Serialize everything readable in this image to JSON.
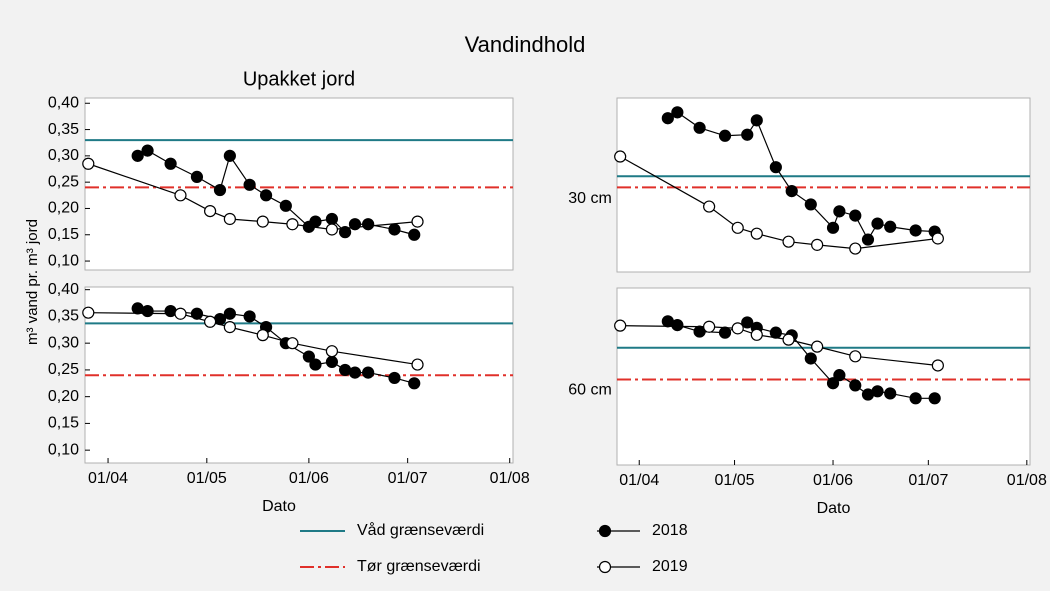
{
  "title": "Vandindhold",
  "y_label": "m³ vand pr. m³ jord",
  "chart_data": [
    {
      "type": "line",
      "title": "Upakket jord",
      "xlim": [
        "25/03",
        "02/08"
      ],
      "ylim": [
        0.083,
        0.41
      ],
      "yticks": [
        {
          "value": 0.1,
          "label": "0,10"
        },
        {
          "value": 0.15,
          "label": "0,15"
        },
        {
          "value": 0.2,
          "label": "0,20"
        },
        {
          "value": 0.25,
          "label": "0,25"
        },
        {
          "value": 0.3,
          "label": "0,30"
        },
        {
          "value": 0.35,
          "label": "0,35"
        },
        {
          "value": 0.4,
          "label": "0,40"
        }
      ],
      "reference_lines": [
        {
          "name": "Våd grænseværdi",
          "color": "#1f7a86",
          "value": 0.33
        },
        {
          "name": "Tør grænseværdi",
          "color": "#e0302a",
          "value": 0.24
        }
      ],
      "series": [
        {
          "name": "2018",
          "color": "#000000",
          "x": [
            "10/04",
            "13/04",
            "20/04",
            "28/04",
            "05/05",
            "08/05",
            "14/05",
            "19/05",
            "25/05",
            "01/06",
            "03/06",
            "08/06",
            "12/06",
            "15/06",
            "19/06",
            "27/06",
            "03/07"
          ],
          "values": [
            0.3,
            0.31,
            0.285,
            0.26,
            0.235,
            0.3,
            0.245,
            0.225,
            0.205,
            0.165,
            0.175,
            0.18,
            0.155,
            0.17,
            0.17,
            0.16,
            0.15
          ]
        },
        {
          "name": "2019",
          "color": "#ffffff",
          "x": [
            "26/03",
            "23/04",
            "02/05",
            "08/05",
            "18/05",
            "27/05",
            "08/06",
            "04/07"
          ],
          "values": [
            0.285,
            0.225,
            0.195,
            0.18,
            0.175,
            0.17,
            0.16,
            0.175
          ]
        }
      ]
    },
    {
      "type": "line",
      "side_label": "30 cm",
      "xlim": [
        "25/03",
        "02/08"
      ],
      "ylim": [
        0.083,
        0.41
      ],
      "reference_lines": [
        {
          "name": "Våd grænseværdi",
          "color": "#1f7a86",
          "value": 0.263
        },
        {
          "name": "Tør grænseværdi",
          "color": "#e0302a",
          "value": 0.242
        }
      ],
      "series": [
        {
          "name": "2018",
          "color": "#000000",
          "x": [
            "10/04",
            "13/04",
            "20/04",
            "28/04",
            "05/05",
            "08/05",
            "14/05",
            "19/05",
            "25/05",
            "01/06",
            "03/06",
            "08/06",
            "12/06",
            "15/06",
            "19/06",
            "27/06",
            "03/07"
          ],
          "values": [
            0.372,
            0.383,
            0.354,
            0.339,
            0.341,
            0.368,
            0.28,
            0.235,
            0.21,
            0.166,
            0.197,
            0.189,
            0.144,
            0.174,
            0.168,
            0.161,
            0.159
          ]
        },
        {
          "name": "2019",
          "color": "#ffffff",
          "x": [
            "26/03",
            "23/04",
            "02/05",
            "08/05",
            "18/05",
            "27/05",
            "08/06",
            "04/07"
          ],
          "values": [
            0.3,
            0.206,
            0.166,
            0.155,
            0.14,
            0.134,
            0.127,
            0.146
          ]
        }
      ]
    },
    {
      "type": "line",
      "x_label": "Dato",
      "xlim": [
        "25/03",
        "02/08"
      ],
      "ylim": [
        0.076,
        0.405
      ],
      "xticks": [
        "01/04",
        "01/05",
        "01/06",
        "01/07",
        "01/08"
      ],
      "yticks": [
        {
          "value": 0.1,
          "label": "0,10"
        },
        {
          "value": 0.15,
          "label": "0,15"
        },
        {
          "value": 0.2,
          "label": "0,20"
        },
        {
          "value": 0.25,
          "label": "0,25"
        },
        {
          "value": 0.3,
          "label": "0,30"
        },
        {
          "value": 0.35,
          "label": "0,35"
        },
        {
          "value": 0.4,
          "label": "0,40"
        }
      ],
      "reference_lines": [
        {
          "name": "Våd grænseværdi",
          "color": "#1f7a86",
          "value": 0.337
        },
        {
          "name": "Tør grænseværdi",
          "color": "#e0302a",
          "value": 0.24
        }
      ],
      "series": [
        {
          "name": "2018",
          "color": "#000000",
          "x": [
            "10/04",
            "13/04",
            "20/04",
            "28/04",
            "05/05",
            "08/05",
            "14/05",
            "19/05",
            "25/05",
            "01/06",
            "03/06",
            "08/06",
            "12/06",
            "15/06",
            "19/06",
            "27/06",
            "03/07"
          ],
          "values": [
            0.365,
            0.36,
            0.36,
            0.355,
            0.345,
            0.355,
            0.35,
            0.33,
            0.3,
            0.275,
            0.26,
            0.265,
            0.25,
            0.245,
            0.245,
            0.235,
            0.225
          ]
        },
        {
          "name": "2019",
          "color": "#ffffff",
          "x": [
            "26/03",
            "23/04",
            "02/05",
            "08/05",
            "18/05",
            "27/05",
            "08/06",
            "04/07"
          ],
          "values": [
            0.357,
            0.355,
            0.34,
            0.33,
            0.315,
            0.3,
            0.285,
            0.26
          ]
        }
      ]
    },
    {
      "type": "line",
      "x_label": "Dato",
      "side_label": "60 cm",
      "xlim": [
        "25/03",
        "02/08"
      ],
      "ylim": [
        0.076,
        0.405
      ],
      "xticks": [
        "01/04",
        "01/05",
        "01/06",
        "01/07",
        "01/08"
      ],
      "reference_lines": [
        {
          "name": "Våd grænseværdi",
          "color": "#1f7a86",
          "value": 0.294
        },
        {
          "name": "Tør grænseværdi",
          "color": "#e0302a",
          "value": 0.235
        }
      ],
      "series": [
        {
          "name": "2018",
          "color": "#000000",
          "x": [
            "10/04",
            "13/04",
            "20/04",
            "28/04",
            "05/05",
            "08/05",
            "14/05",
            "19/05",
            "25/05",
            "01/06",
            "03/06",
            "08/06",
            "12/06",
            "15/06",
            "19/06",
            "27/06",
            "03/07"
          ],
          "values": [
            0.343,
            0.336,
            0.324,
            0.322,
            0.341,
            0.331,
            0.322,
            0.317,
            0.274,
            0.228,
            0.243,
            0.224,
            0.207,
            0.213,
            0.209,
            0.2,
            0.2
          ]
        },
        {
          "name": "2019",
          "color": "#ffffff",
          "x": [
            "26/03",
            "23/04",
            "02/05",
            "08/05",
            "18/05",
            "27/05",
            "08/06",
            "04/07"
          ],
          "values": [
            0.335,
            0.333,
            0.33,
            0.318,
            0.309,
            0.296,
            0.278,
            0.261
          ]
        }
      ]
    }
  ]
}
